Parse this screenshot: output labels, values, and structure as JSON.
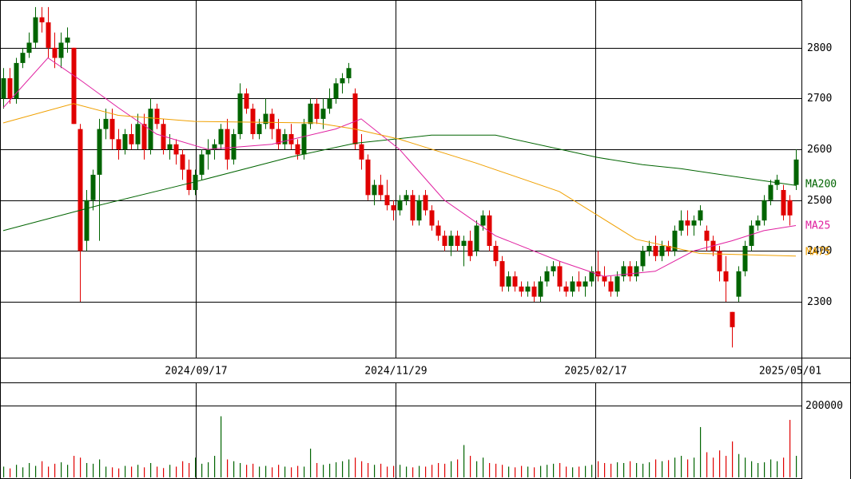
{
  "chart_data": {
    "type": "candlestick",
    "up_color": "#006400",
    "down_color": "#e00000",
    "xlim": [
      -0.5,
      124.875
    ],
    "ylim": [
      2190,
      2894
    ],
    "yticks": [
      2300,
      2400,
      2500,
      2600,
      2700,
      2800
    ],
    "xticks": [
      {
        "value": 30.125,
        "label": "2024/09/17"
      },
      {
        "value": 61.375,
        "label": "2024/11/29"
      },
      {
        "value": 92.625,
        "label": "2025/02/17"
      },
      {
        "value": 124.875,
        "label": "2025/05/01"
      }
    ],
    "ohlc": [
      [
        2700,
        2760,
        2680,
        2740
      ],
      [
        2740,
        2760,
        2690,
        2700
      ],
      [
        2700,
        2780,
        2690,
        2770
      ],
      [
        2770,
        2800,
        2760,
        2790
      ],
      [
        2790,
        2830,
        2780,
        2810
      ],
      [
        2810,
        2880,
        2800,
        2860
      ],
      [
        2860,
        2880,
        2830,
        2850
      ],
      [
        2850,
        2880,
        2780,
        2800
      ],
      [
        2800,
        2830,
        2760,
        2780
      ],
      [
        2780,
        2830,
        2760,
        2810
      ],
      [
        2810,
        2840,
        2790,
        2820
      ],
      [
        2800,
        2800,
        2650,
        2650
      ],
      [
        2640,
        2650,
        2300,
        2400
      ],
      [
        2420,
        2520,
        2400,
        2500
      ],
      [
        2500,
        2560,
        2480,
        2550
      ],
      [
        2550,
        2660,
        2420,
        2640
      ],
      [
        2640,
        2680,
        2620,
        2660
      ],
      [
        2660,
        2680,
        2600,
        2620
      ],
      [
        2620,
        2640,
        2580,
        2600
      ],
      [
        2600,
        2640,
        2590,
        2630
      ],
      [
        2630,
        2650,
        2600,
        2610
      ],
      [
        2610,
        2670,
        2600,
        2650
      ],
      [
        2650,
        2670,
        2580,
        2600
      ],
      [
        2600,
        2700,
        2590,
        2680
      ],
      [
        2680,
        2690,
        2640,
        2650
      ],
      [
        2650,
        2660,
        2590,
        2600
      ],
      [
        2600,
        2630,
        2580,
        2610
      ],
      [
        2610,
        2620,
        2570,
        2590
      ],
      [
        2590,
        2600,
        2540,
        2560
      ],
      [
        2560,
        2580,
        2510,
        2520
      ],
      [
        2520,
        2560,
        2510,
        2550
      ],
      [
        2550,
        2600,
        2540,
        2590
      ],
      [
        2590,
        2620,
        2560,
        2600
      ],
      [
        2600,
        2620,
        2580,
        2610
      ],
      [
        2610,
        2650,
        2600,
        2640
      ],
      [
        2640,
        2660,
        2560,
        2580
      ],
      [
        2580,
        2640,
        2570,
        2630
      ],
      [
        2630,
        2730,
        2620,
        2710
      ],
      [
        2710,
        2720,
        2670,
        2680
      ],
      [
        2680,
        2690,
        2620,
        2630
      ],
      [
        2630,
        2660,
        2620,
        2650
      ],
      [
        2650,
        2700,
        2640,
        2670
      ],
      [
        2670,
        2680,
        2620,
        2640
      ],
      [
        2640,
        2660,
        2600,
        2610
      ],
      [
        2610,
        2640,
        2600,
        2630
      ],
      [
        2630,
        2650,
        2600,
        2610
      ],
      [
        2610,
        2620,
        2580,
        2590
      ],
      [
        2590,
        2660,
        2580,
        2650
      ],
      [
        2650,
        2700,
        2640,
        2690
      ],
      [
        2690,
        2700,
        2650,
        2660
      ],
      [
        2660,
        2700,
        2640,
        2680
      ],
      [
        2680,
        2720,
        2670,
        2700
      ],
      [
        2700,
        2740,
        2690,
        2730
      ],
      [
        2730,
        2750,
        2710,
        2740
      ],
      [
        2740,
        2770,
        2730,
        2760
      ],
      [
        2710,
        2720,
        2600,
        2610
      ],
      [
        2610,
        2630,
        2560,
        2580
      ],
      [
        2580,
        2590,
        2500,
        2510
      ],
      [
        2510,
        2540,
        2490,
        2530
      ],
      [
        2530,
        2550,
        2500,
        2510
      ],
      [
        2510,
        2540,
        2480,
        2490
      ],
      [
        2490,
        2500,
        2460,
        2480
      ],
      [
        2480,
        2510,
        2470,
        2500
      ],
      [
        2500,
        2520,
        2490,
        2510
      ],
      [
        2510,
        2520,
        2450,
        2460
      ],
      [
        2460,
        2510,
        2450,
        2500
      ],
      [
        2510,
        2520,
        2470,
        2480
      ],
      [
        2480,
        2490,
        2440,
        2450
      ],
      [
        2450,
        2460,
        2420,
        2430
      ],
      [
        2430,
        2440,
        2400,
        2410
      ],
      [
        2410,
        2440,
        2390,
        2430
      ],
      [
        2430,
        2440,
        2400,
        2410
      ],
      [
        2410,
        2430,
        2370,
        2420
      ],
      [
        2420,
        2440,
        2380,
        2390
      ],
      [
        2400,
        2460,
        2390,
        2450
      ],
      [
        2450,
        2480,
        2440,
        2470
      ],
      [
        2470,
        2480,
        2400,
        2410
      ],
      [
        2410,
        2420,
        2370,
        2380
      ],
      [
        2380,
        2390,
        2320,
        2330
      ],
      [
        2330,
        2360,
        2320,
        2350
      ],
      [
        2350,
        2360,
        2320,
        2330
      ],
      [
        2330,
        2340,
        2310,
        2320
      ],
      [
        2320,
        2340,
        2310,
        2330
      ],
      [
        2330,
        2340,
        2300,
        2310
      ],
      [
        2310,
        2350,
        2300,
        2340
      ],
      [
        2340,
        2370,
        2330,
        2360
      ],
      [
        2360,
        2380,
        2350,
        2370
      ],
      [
        2370,
        2380,
        2320,
        2330
      ],
      [
        2330,
        2340,
        2310,
        2320
      ],
      [
        2320,
        2350,
        2310,
        2340
      ],
      [
        2340,
        2360,
        2320,
        2330
      ],
      [
        2330,
        2350,
        2310,
        2340
      ],
      [
        2340,
        2370,
        2330,
        2360
      ],
      [
        2360,
        2400,
        2340,
        2350
      ],
      [
        2350,
        2370,
        2330,
        2340
      ],
      [
        2340,
        2350,
        2310,
        2320
      ],
      [
        2320,
        2360,
        2310,
        2350
      ],
      [
        2350,
        2380,
        2340,
        2370
      ],
      [
        2370,
        2380,
        2340,
        2350
      ],
      [
        2350,
        2380,
        2340,
        2370
      ],
      [
        2370,
        2410,
        2360,
        2400
      ],
      [
        2400,
        2420,
        2390,
        2410
      ],
      [
        2410,
        2430,
        2380,
        2390
      ],
      [
        2390,
        2420,
        2380,
        2410
      ],
      [
        2410,
        2420,
        2390,
        2400
      ],
      [
        2400,
        2450,
        2390,
        2440
      ],
      [
        2440,
        2480,
        2430,
        2460
      ],
      [
        2460,
        2480,
        2430,
        2450
      ],
      [
        2450,
        2470,
        2430,
        2460
      ],
      [
        2460,
        2490,
        2450,
        2480
      ],
      [
        2440,
        2450,
        2400,
        2420
      ],
      [
        2420,
        2430,
        2390,
        2400
      ],
      [
        2400,
        2410,
        2340,
        2360
      ],
      [
        2360,
        2390,
        2300,
        2340
      ],
      [
        2280,
        2280,
        2210,
        2250
      ],
      [
        2310,
        2370,
        2300,
        2360
      ],
      [
        2360,
        2420,
        2350,
        2410
      ],
      [
        2410,
        2460,
        2400,
        2450
      ],
      [
        2450,
        2470,
        2440,
        2460
      ],
      [
        2460,
        2510,
        2450,
        2500
      ],
      [
        2500,
        2540,
        2490,
        2530
      ],
      [
        2530,
        2550,
        2520,
        2540
      ],
      [
        2520,
        2530,
        2460,
        2470
      ],
      [
        2500,
        2510,
        2450,
        2470
      ],
      [
        2530,
        2600,
        2520,
        2580
      ]
    ],
    "series": [
      {
        "name": "MA200",
        "color": "#006400",
        "x": [
          0,
          15,
          30,
          45,
          55,
          67,
          77,
          93,
          100,
          106,
          124
        ],
        "values": [
          2440,
          2490,
          2536,
          2585,
          2612,
          2628,
          2628,
          2584,
          2570,
          2562,
          2529
        ]
      },
      {
        "name": "MA25",
        "color": "#e020a0",
        "x": [
          0,
          7,
          12,
          18,
          24,
          32,
          42,
          52,
          56,
          62,
          69,
          77,
          87,
          94,
          102,
          108,
          114,
          119,
          124
        ],
        "values": [
          2682,
          2780,
          2737,
          2682,
          2630,
          2600,
          2610,
          2640,
          2660,
          2600,
          2500,
          2430,
          2380,
          2350,
          2360,
          2400,
          2420,
          2440,
          2450
        ]
      },
      {
        "name": "MA75",
        "color": "#f0a000",
        "x": [
          0,
          11,
          18,
          30,
          49,
          55,
          62,
          74,
          87,
          99,
          109,
          124
        ],
        "values": [
          2652,
          2690,
          2667,
          2655,
          2652,
          2640,
          2620,
          2573,
          2517,
          2423,
          2395,
          2390
        ]
      }
    ],
    "volume": {
      "ylim": [
        0,
        262000
      ],
      "yticks": [
        200000
      ],
      "values": [
        30000,
        25000,
        35000,
        28000,
        40000,
        32000,
        45000,
        30000,
        38000,
        42000,
        35000,
        60000,
        55000,
        40000,
        38000,
        50000,
        30000,
        28000,
        25000,
        32000,
        30000,
        35000,
        28000,
        40000,
        30000,
        26000,
        35000,
        30000,
        45000,
        40000,
        55000,
        38000,
        42000,
        60000,
        170000,
        50000,
        45000,
        40000,
        35000,
        38000,
        30000,
        32000,
        28000,
        35000,
        30000,
        28000,
        32000,
        30000,
        80000,
        40000,
        35000,
        38000,
        42000,
        45000,
        50000,
        55000,
        45000,
        40000,
        35000,
        38000,
        30000,
        32000,
        35000,
        30000,
        28000,
        32000,
        30000,
        35000,
        40000,
        38000,
        45000,
        50000,
        90000,
        60000,
        45000,
        55000,
        40000,
        38000,
        35000,
        30000,
        28000,
        32000,
        30000,
        28000,
        32000,
        35000,
        38000,
        40000,
        30000,
        28000,
        30000,
        32000,
        35000,
        45000,
        40000,
        38000,
        42000,
        40000,
        45000,
        40000,
        38000,
        42000,
        50000,
        45000,
        48000,
        55000,
        60000,
        50000,
        55000,
        140000,
        70000,
        55000,
        75000,
        60000,
        100000,
        65000,
        55000,
        45000,
        40000,
        42000,
        50000,
        45000,
        55000,
        160000,
        60000
      ]
    }
  }
}
